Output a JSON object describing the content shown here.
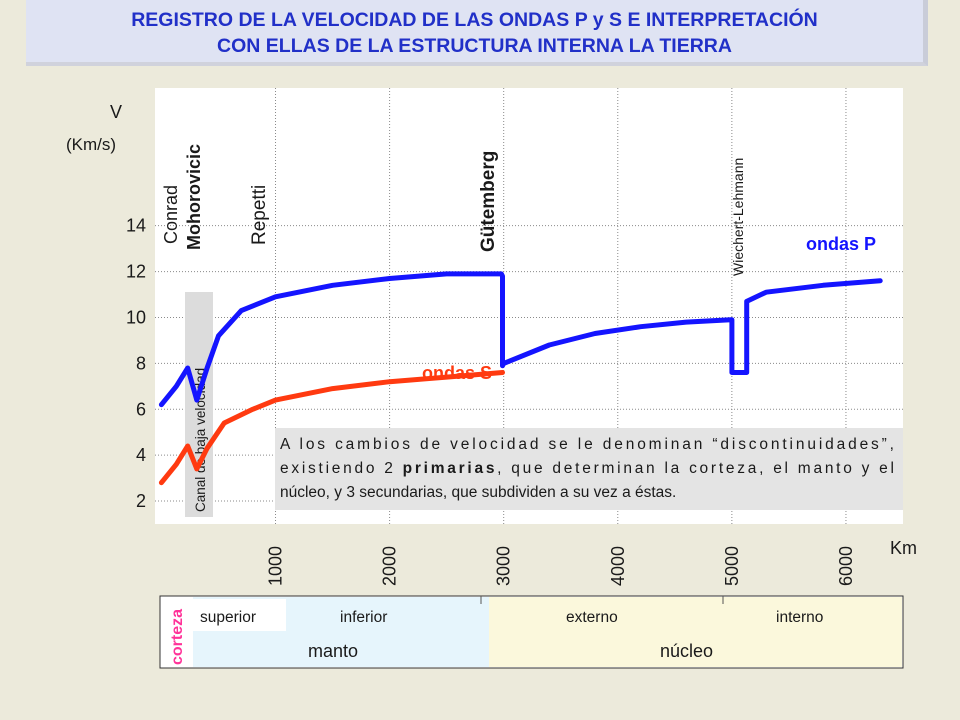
{
  "title": {
    "line1": "REGISTRO DE LA VELOCIDAD DE LAS ONDAS P y S E INTERPRETACIÓN",
    "line2": "CON ELLAS DE LA ESTRUCTURA INTERNA LA TIERRA"
  },
  "colors": {
    "p_wave": "#1414ff",
    "s_wave": "#ff3a10",
    "title": "#2130c8",
    "mantle": "#e6f5fc",
    "core": "#fbf8dc",
    "crust_label": "#ff3399"
  },
  "chart_data": {
    "type": "line",
    "title": "",
    "xlabel": "Km",
    "ylabel": "V (Km/s)",
    "xlim": [
      -30,
      6500
    ],
    "ylim": [
      1,
      20
    ],
    "x_ticks": [
      "1000",
      "2000",
      "3000",
      "4000",
      "5000",
      "6000"
    ],
    "x_tick_values": [
      1000,
      2000,
      3000,
      4000,
      5000,
      6000
    ],
    "y_ticks": [
      "2",
      "4",
      "6",
      "8",
      "10",
      "12",
      "14"
    ],
    "y_tick_values": [
      2,
      4,
      6,
      8,
      10,
      12,
      14
    ],
    "grid": true,
    "series": [
      {
        "name": "ondas P",
        "x": [
          0,
          130,
          230,
          310,
          400,
          500,
          700,
          1000,
          1500,
          2000,
          2500,
          2980,
          2990,
          2990,
          3000,
          3400,
          3800,
          4200,
          4600,
          4990,
          5000,
          5000,
          5130,
          5130,
          5300,
          5800,
          6300
        ],
        "y": [
          6.2,
          7.0,
          7.8,
          6.4,
          7.8,
          9.2,
          10.3,
          10.9,
          11.4,
          11.7,
          11.9,
          11.9,
          11.8,
          7.9,
          8.0,
          8.8,
          9.3,
          9.6,
          9.8,
          9.9,
          9.9,
          7.6,
          7.6,
          10.7,
          11.1,
          11.4,
          11.6
        ]
      },
      {
        "name": "ondas S",
        "x": [
          0,
          130,
          230,
          310,
          400,
          550,
          800,
          1000,
          1500,
          2000,
          2500,
          2990
        ],
        "y": [
          2.8,
          3.6,
          4.4,
          3.4,
          4.3,
          5.4,
          6.0,
          6.4,
          6.9,
          7.2,
          7.4,
          7.6
        ]
      }
    ],
    "annotations": [
      "Conrad",
      "Mohorovicic",
      "Repetti",
      "Gütemberg",
      "Wiechert-Lehmann",
      "Canal de baja velocidad"
    ]
  },
  "labels": {
    "y_axis_v": "V",
    "y_axis_unit": "(Km/s)",
    "conrad": "Conrad",
    "mohorovicic": "Mohorovicic",
    "repetti": "Repetti",
    "gutemberg": "Gütemberg",
    "wiechert": "Wiechert-Lehmann",
    "canal": "Canal de baja velocidad",
    "ondas_p": "ondas P",
    "ondas_s": "ondas S",
    "x_unit": "Km"
  },
  "note": {
    "line1": "A los cambios de velocidad se le denominan “discontinuidades”,",
    "line2a": "existiendo 2 ",
    "line2b": "primarias",
    "line2c": ", que determinan la corteza, el manto y el",
    "line3": "núcleo, y 3 secundarias, que subdividen a su vez a éstas."
  },
  "layers": {
    "corteza": "corteza",
    "superior": "superior",
    "inferior": "inferior",
    "externo": "externo",
    "interno": "interno",
    "manto": "manto",
    "nucleo": "núcleo"
  }
}
